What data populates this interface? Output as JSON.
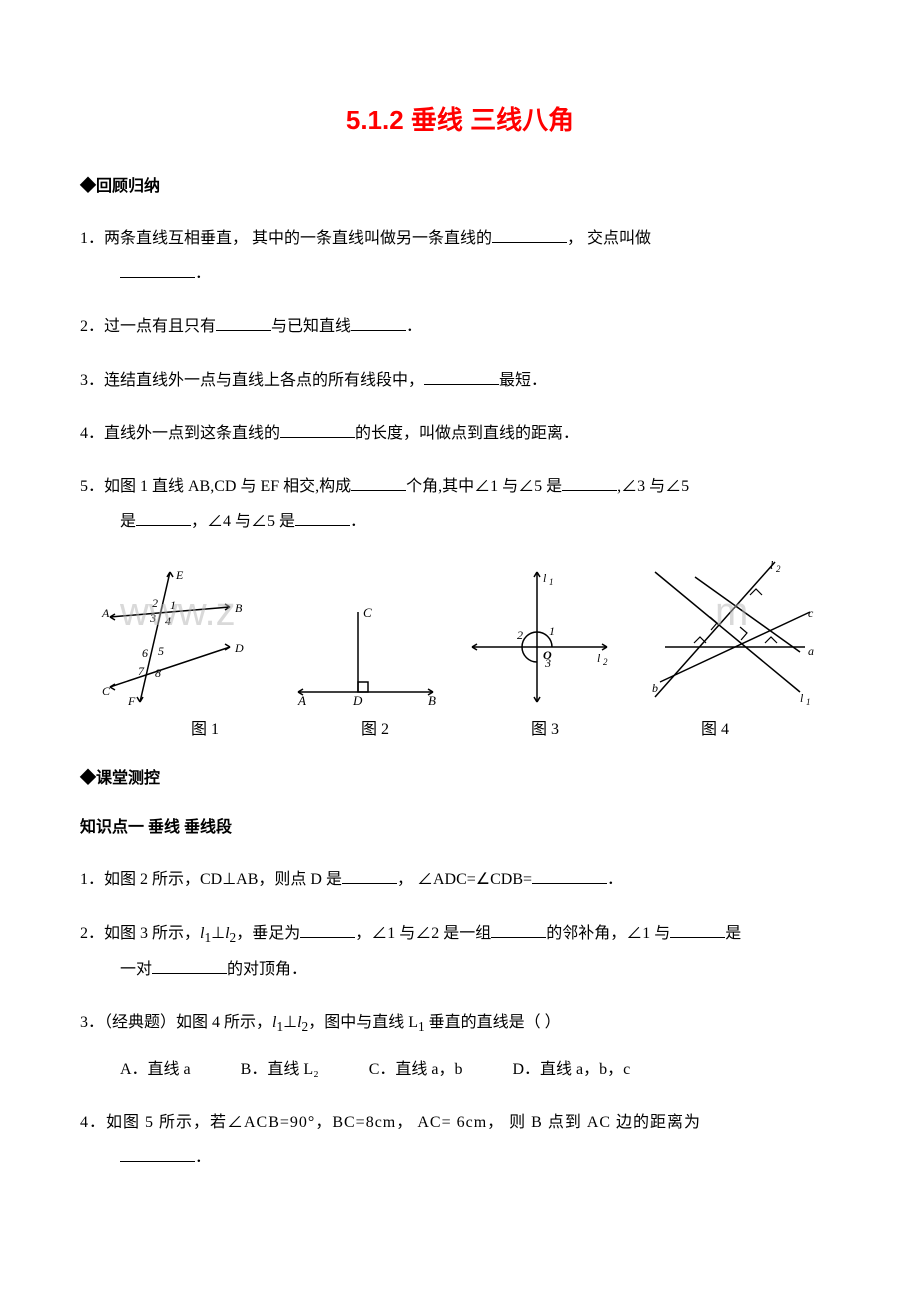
{
  "title": "5.1.2 垂线 三线八角",
  "sections": {
    "review_header": "◆回顾归纳",
    "review": [
      {
        "num": "1",
        "text_a": "．两条直线互相垂直， 其中的一条直线叫做另一条直线的",
        "text_b": "， 交点叫做",
        "text_c": "．"
      },
      {
        "num": "2",
        "text_a": "．过一点有且只有",
        "text_b": "与已知直线",
        "text_c": "．"
      },
      {
        "num": "3",
        "text_a": "．连结直线外一点与直线上各点的所有线段中，",
        "text_b": "最短．"
      },
      {
        "num": "4",
        "text_a": "．直线外一点到这条直线的",
        "text_b": "的长度，叫做点到直线的距离．"
      },
      {
        "num": "5",
        "text_a": "．如图 1 直线 AB,CD 与 EF 相交,构成",
        "text_b": "个角,其中∠1 与∠5 是",
        "text_c": ",∠3 与∠5",
        "indent_a": "是",
        "indent_b": "，∠4 与∠5 是",
        "indent_c": "．"
      }
    ],
    "figure_labels": [
      "图 1",
      "图 2",
      "图 3",
      "图 4"
    ],
    "test_header": "◆课堂测控",
    "kp_header": "知识点一  垂线  垂线段",
    "test": [
      {
        "num": "1",
        "text_a": "．如图 2 所示，CD⊥AB，则点 D 是",
        "text_b": "， ∠ADC=∠CDB=",
        "text_c": "．"
      },
      {
        "num": "2",
        "text_a_html": "．如图 3 所示，<i>l</i><sub>1</sub>⊥<i>l</i><sub>2</sub>，垂足为",
        "text_b": "，∠1 与∠2 是一组",
        "text_c": "的邻补角，∠1 与",
        "text_d": "是",
        "indent_a": "一对",
        "indent_b": "的对顶角．"
      },
      {
        "num": "3",
        "text_a_html": "．（经典题）如图 4 所示，<i>l</i><sub>1</sub>⊥<i>l</i><sub>2</sub>，图中与直线 L<sub>1</sub> 垂直的直线是（  ）"
      },
      {
        "num": "4",
        "text_a": "．如图 5 所示，若∠ACB=90°，BC=8cm， AC= 6cm， 则 B 点到 AC 边的距离为",
        "indent_a": "．"
      }
    ],
    "choices": {
      "A": "A．直线 a",
      "B": "B．直线 L₂",
      "C": "C．直线 a，b",
      "D": "D．直线 a，b，c"
    }
  },
  "watermarks": {
    "left": "www.z",
    "right": "m"
  },
  "colors": {
    "title": "#ff0000",
    "text": "#000000",
    "bg": "#ffffff",
    "watermark": "rgba(180,180,180,0.5)"
  },
  "fonts": {
    "title_size": 26,
    "body_size": 16
  }
}
